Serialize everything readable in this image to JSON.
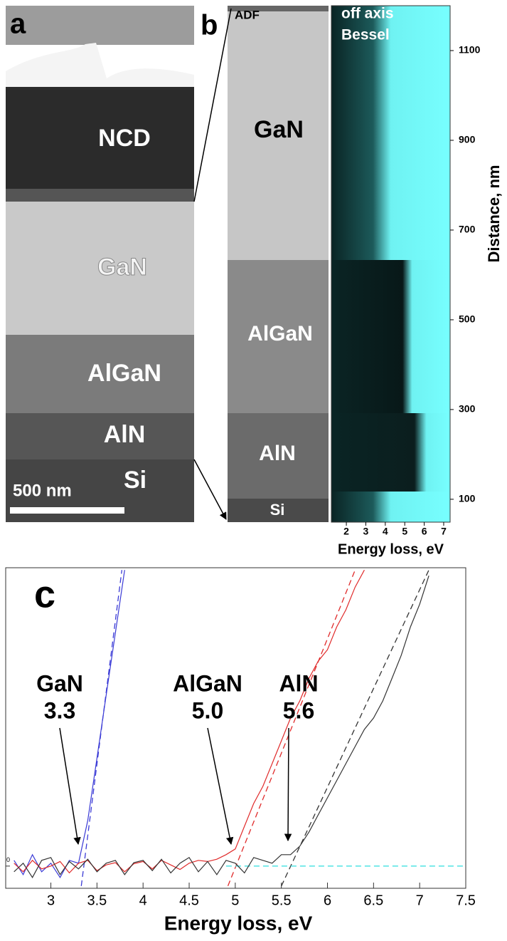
{
  "panels": {
    "a": {
      "label": "a",
      "layers": [
        "NCD",
        "GaN",
        "AlGaN",
        "AlN",
        "Si"
      ],
      "scale_bar": "500 nm"
    },
    "b": {
      "label": "b",
      "detector": "ADF",
      "layers": [
        "GaN",
        "AlGaN",
        "AlN",
        "Si"
      ]
    }
  },
  "chart_data": [
    {
      "type": "image",
      "annotations": [
        "off axis",
        "Bessel"
      ],
      "xlabel": "Energy loss, eV",
      "ylabel": "Distance, nm",
      "xlim": [
        1.23,
        7.33
      ],
      "ylim": [
        49,
        1200
      ],
      "xticks": [
        2,
        3,
        4,
        5,
        6,
        7
      ],
      "yticks": [
        100,
        300,
        500,
        700,
        900,
        1100
      ]
    },
    {
      "type": "line",
      "panel_label": "c",
      "xlabel": "Energy loss, eV",
      "xlim": [
        2.51,
        7.5
      ],
      "ylim": [
        -0.39,
        5.24
      ],
      "xticks": [
        3,
        3.5,
        4,
        4.5,
        5,
        5.5,
        6,
        6.5,
        7,
        7.5
      ],
      "yticks": [
        0
      ],
      "series": [
        {
          "color": "#3a3ad6",
          "x": [
            2.6,
            2.7,
            2.8,
            2.9,
            3.0,
            3.1,
            3.2,
            3.3,
            3.4,
            3.5,
            3.6,
            3.7,
            3.8
          ],
          "values": [
            0.1,
            -0.15,
            0.2,
            -0.1,
            0.05,
            -0.2,
            0.1,
            0.05,
            0.8,
            1.9,
            3.0,
            4.1,
            5.2
          ]
        },
        {
          "color": "#e02a2a",
          "x": [
            2.6,
            2.7,
            2.8,
            2.9,
            3.0,
            3.1,
            3.2,
            3.3,
            3.4,
            3.5,
            3.6,
            3.7,
            3.8,
            3.9,
            4.0,
            4.1,
            4.2,
            4.3,
            4.4,
            4.5,
            4.6,
            4.7,
            4.8,
            4.9,
            5.0,
            5.1,
            5.2,
            5.3,
            5.4,
            5.5,
            5.6,
            5.7,
            5.8,
            5.9,
            6.0,
            6.1,
            6.2,
            6.3,
            6.4
          ],
          "values": [
            0.05,
            -0.1,
            0.1,
            -0.05,
            0.0,
            0.08,
            -0.12,
            0.05,
            0.1,
            -0.08,
            0.02,
            0.06,
            -0.1,
            0.04,
            0.08,
            -0.05,
            0.1,
            0.02,
            -0.06,
            0.05,
            0.1,
            0.08,
            0.12,
            0.2,
            0.3,
            0.7,
            1.1,
            1.4,
            1.8,
            2.2,
            2.6,
            2.9,
            3.3,
            3.6,
            3.8,
            4.2,
            4.5,
            4.9,
            5.2
          ]
        },
        {
          "color": "#333333",
          "x": [
            2.6,
            2.7,
            2.8,
            2.9,
            3.0,
            3.1,
            3.2,
            3.3,
            3.4,
            3.5,
            3.6,
            3.7,
            3.8,
            3.9,
            4.0,
            4.1,
            4.2,
            4.3,
            4.4,
            4.5,
            4.6,
            4.7,
            4.8,
            4.9,
            5.0,
            5.1,
            5.2,
            5.3,
            5.4,
            5.5,
            5.6,
            5.7,
            5.8,
            5.9,
            6.0,
            6.1,
            6.2,
            6.3,
            6.4,
            6.5,
            6.6,
            6.7,
            6.8,
            6.9,
            7.0,
            7.1
          ],
          "values": [
            -0.1,
            0.05,
            -0.2,
            0.1,
            0.15,
            -0.15,
            0.08,
            -0.05,
            0.12,
            -0.1,
            0.05,
            0.1,
            -0.15,
            0.06,
            0.1,
            -0.08,
            0.12,
            -0.12,
            0.05,
            0.15,
            -0.1,
            0.08,
            -0.15,
            0.1,
            0.05,
            -0.12,
            0.15,
            0.1,
            0.05,
            0.2,
            0.2,
            0.35,
            0.6,
            0.9,
            1.2,
            1.5,
            1.8,
            2.1,
            2.4,
            2.6,
            2.9,
            3.3,
            3.7,
            4.2,
            4.6,
            5.1
          ]
        }
      ],
      "fits": [
        {
          "color": "#3a3ad6",
          "x": [
            3.33,
            3.77
          ],
          "values": [
            -0.35,
            5.2
          ]
        },
        {
          "color": "#e02a2a",
          "x": [
            4.92,
            6.3
          ],
          "values": [
            -0.35,
            5.2
          ]
        },
        {
          "color": "#333333",
          "x": [
            5.5,
            7.1
          ],
          "values": [
            -0.35,
            5.2
          ]
        },
        {
          "color": "#40e0e0",
          "x": [
            4.9,
            7.5
          ],
          "values": [
            0,
            0
          ]
        }
      ],
      "annotations": [
        [
          "GaN",
          "3.3"
        ],
        [
          "AlGaN",
          "5.0"
        ],
        [
          "AlN",
          "5.6"
        ]
      ]
    }
  ]
}
